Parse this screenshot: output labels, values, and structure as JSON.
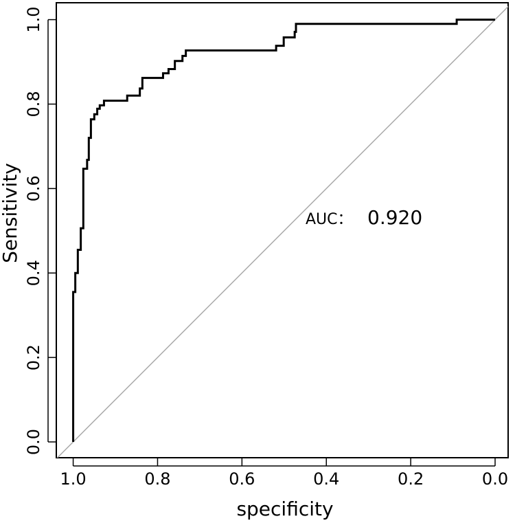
{
  "chart_data": {
    "type": "line",
    "xlabel": "specificity",
    "ylabel": "Sensitivity",
    "annotations": [
      "AUC：",
      "0.920"
    ],
    "x": [
      1.0,
      1.0,
      0.995,
      0.995,
      0.989,
      0.989,
      0.982,
      0.982,
      0.976,
      0.976,
      0.967,
      0.967,
      0.963,
      0.963,
      0.958,
      0.958,
      0.95,
      0.95,
      0.943,
      0.943,
      0.937,
      0.937,
      0.927,
      0.927,
      0.872,
      0.872,
      0.842,
      0.842,
      0.836,
      0.836,
      0.787,
      0.787,
      0.774,
      0.774,
      0.759,
      0.759,
      0.741,
      0.741,
      0.733,
      0.733,
      0.519,
      0.519,
      0.501,
      0.501,
      0.475,
      0.475,
      0.472,
      0.472,
      0.091,
      0.091,
      0.0
    ],
    "series": [
      {
        "color": "#000000",
        "values": [
          0,
          0.355,
          0.355,
          0.4,
          0.4,
          0.455,
          0.455,
          0.506,
          0.506,
          0.647,
          0.647,
          0.668,
          0.668,
          0.72,
          0.72,
          0.764,
          0.764,
          0.776,
          0.776,
          0.789,
          0.789,
          0.797,
          0.797,
          0.808,
          0.808,
          0.82,
          0.82,
          0.837,
          0.837,
          0.862,
          0.862,
          0.873,
          0.873,
          0.883,
          0.883,
          0.902,
          0.902,
          0.914,
          0.914,
          0.927,
          0.927,
          0.938,
          0.938,
          0.958,
          0.958,
          0.971,
          0.971,
          0.99,
          0.99,
          1.0,
          1.0
        ]
      }
    ],
    "xlim": [
      1.04,
      -0.04
    ],
    "xticks": [
      {
        "value": 1.0,
        "label": "1.0"
      },
      0.8,
      0.6,
      0.4,
      0.2,
      {
        "value": 0.0,
        "label": "0.0"
      }
    ],
    "ylim": [
      -0.04,
      1.04
    ],
    "yticks": [
      {
        "value": 0.0,
        "label": "0.0"
      },
      0.2,
      0.4,
      0.6,
      0.8,
      {
        "value": 1.0,
        "label": "1.0"
      }
    ],
    "grid": false
  }
}
